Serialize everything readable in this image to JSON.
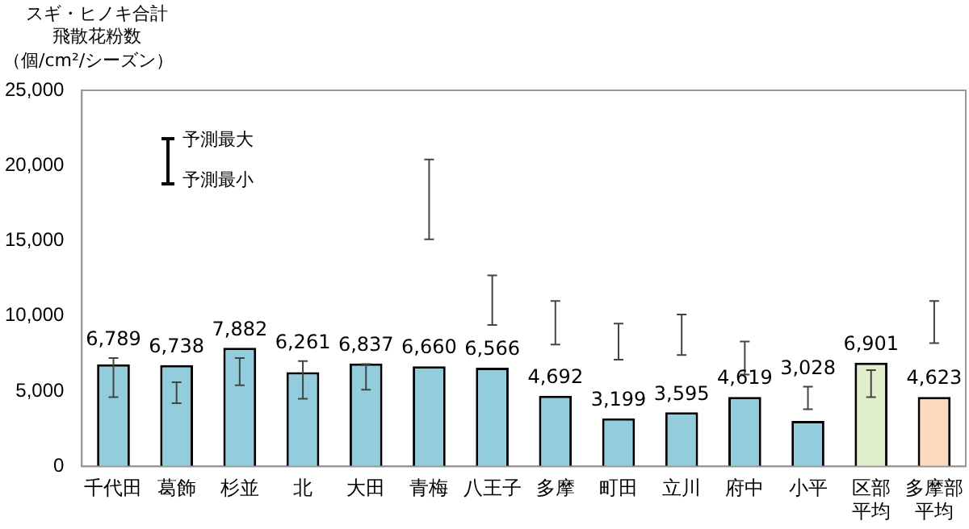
{
  "chart_data": {
    "type": "bar",
    "ylabel": "スギ・ヒノキ合計飛散花粉数",
    "categories": [
      "千代田",
      "葛飾",
      "杉並",
      "北",
      "大田",
      "青梅",
      "八王子",
      "多摩",
      "町田",
      "立川",
      "府中",
      "小平",
      "区部平均",
      "多摩部平均"
    ],
    "values": [
      6789,
      6738,
      7882,
      6261,
      6837,
      6660,
      6566,
      4692,
      3199,
      3595,
      4619,
      3028,
      6901,
      4623
    ],
    "value_labels": [
      "6,789",
      "6,738",
      "7,882",
      "6,261",
      "6,837",
      "6,660",
      "6,566",
      "4,692",
      "3,199",
      "3,595",
      "4,619",
      "3,028",
      "6,901",
      "4,623"
    ],
    "colors": [
      "#93cddd",
      "#93cddd",
      "#93cddd",
      "#93cddd",
      "#93cddd",
      "#93cddd",
      "#93cddd",
      "#93cddd",
      "#93cddd",
      "#93cddd",
      "#93cddd",
      "#93cddd",
      "#e2efcc",
      "#fcd9bd"
    ],
    "errors": [
      [
        4600,
        7200
      ],
      [
        4200,
        5600
      ],
      [
        5400,
        7200
      ],
      [
        4500,
        7000
      ],
      [
        5100,
        6800
      ],
      [
        15100,
        20400
      ],
      [
        9400,
        12700
      ],
      [
        8100,
        11000
      ],
      [
        7100,
        9500
      ],
      [
        7400,
        10100
      ],
      [
        6100,
        8300
      ],
      [
        3800,
        5300
      ],
      [
        4600,
        6400
      ],
      [
        8200,
        11000
      ]
    ],
    "ylim": [
      0,
      25000
    ],
    "yticks": [
      {
        "value": 0,
        "label": "0"
      },
      {
        "value": 5000,
        "label": "5,000"
      },
      {
        "value": 10000,
        "label": "10,000"
      },
      {
        "value": 15000,
        "label": "15,000"
      },
      {
        "value": 20000,
        "label": "20,000"
      },
      {
        "value": 25000,
        "label": "25,000"
      }
    ],
    "annotations": [
      "（個/cm²/シーズン）",
      "予測最大",
      "予測最小"
    ],
    "grid": false,
    "legend": false
  }
}
